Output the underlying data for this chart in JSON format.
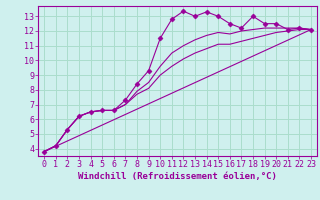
{
  "background_color": "#cff0ee",
  "grid_color": "#aaddcc",
  "line_color": "#990099",
  "marker": "D",
  "marker_size": 2.5,
  "xlabel": "Windchill (Refroidissement éolien,°C)",
  "xlabel_fontsize": 6.5,
  "tick_fontsize": 6,
  "xlim": [
    -0.5,
    23.5
  ],
  "ylim": [
    3.5,
    13.7
  ],
  "yticks": [
    4,
    5,
    6,
    7,
    8,
    9,
    10,
    11,
    12,
    13
  ],
  "xticks": [
    0,
    1,
    2,
    3,
    4,
    5,
    6,
    7,
    8,
    9,
    10,
    11,
    12,
    13,
    14,
    15,
    16,
    17,
    18,
    19,
    20,
    21,
    22,
    23
  ],
  "series_main": {
    "x": [
      0,
      1,
      2,
      3,
      4,
      5,
      6,
      7,
      8,
      9,
      10,
      11,
      12,
      13,
      14,
      15,
      16,
      17,
      18,
      19,
      20,
      21,
      22,
      23
    ],
    "y": [
      3.8,
      4.2,
      5.3,
      6.2,
      6.5,
      6.6,
      6.6,
      7.3,
      8.4,
      9.3,
      11.5,
      12.8,
      13.35,
      13.0,
      13.3,
      13.0,
      12.5,
      12.2,
      13.0,
      12.5,
      12.5,
      12.1,
      12.2,
      12.1
    ]
  },
  "series_smooth1": {
    "x": [
      0,
      1,
      2,
      3,
      4,
      5,
      6,
      7,
      8,
      9,
      10,
      11,
      12,
      13,
      14,
      15,
      16,
      17,
      18,
      19,
      20,
      21,
      22,
      23
    ],
    "y": [
      3.8,
      4.2,
      5.3,
      6.2,
      6.5,
      6.6,
      6.6,
      7.0,
      7.9,
      8.5,
      9.6,
      10.5,
      11.0,
      11.4,
      11.7,
      11.9,
      11.8,
      12.0,
      12.1,
      12.2,
      12.2,
      12.2,
      12.2,
      12.1
    ]
  },
  "series_smooth2": {
    "x": [
      0,
      1,
      2,
      3,
      4,
      5,
      6,
      7,
      8,
      9,
      10,
      11,
      12,
      13,
      14,
      15,
      16,
      17,
      18,
      19,
      20,
      21,
      22,
      23
    ],
    "y": [
      3.8,
      4.2,
      5.3,
      6.2,
      6.5,
      6.6,
      6.6,
      7.0,
      7.7,
      8.1,
      9.0,
      9.6,
      10.1,
      10.5,
      10.8,
      11.1,
      11.1,
      11.3,
      11.5,
      11.7,
      11.9,
      12.0,
      12.1,
      12.1
    ]
  },
  "series_linear": {
    "x": [
      0,
      23
    ],
    "y": [
      3.8,
      12.1
    ]
  }
}
